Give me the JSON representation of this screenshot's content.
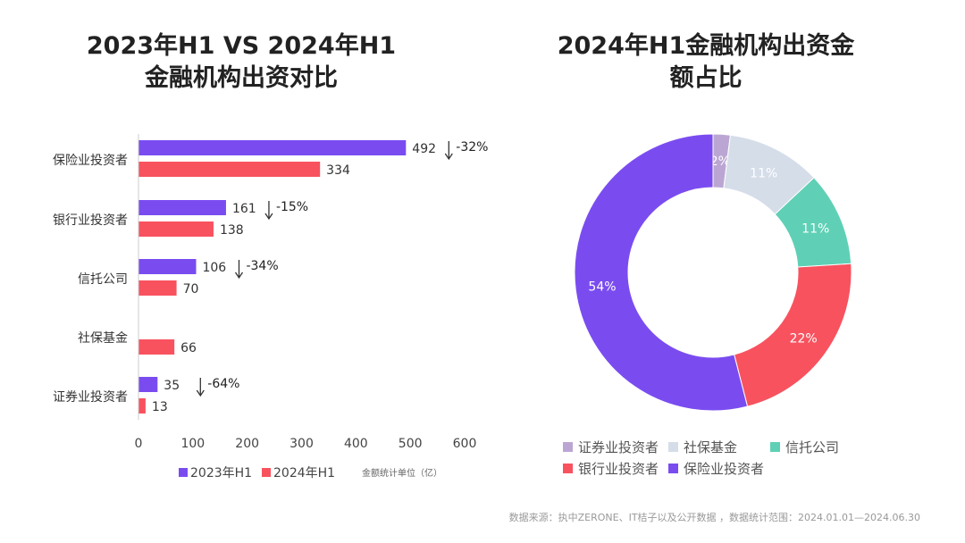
{
  "chart_data": [
    {
      "type": "bar",
      "orientation": "horizontal",
      "title": "2023年H1 VS 2024年H1\n金融机构出资对比",
      "title_lines": [
        "2023年H1 VS 2024年H1",
        "金融机构出资对比"
      ],
      "categories": [
        "保险业投资者",
        "银行业投资者",
        "信托公司",
        "社保基金",
        "证券业投资者"
      ],
      "series": [
        {
          "name": "2023年H1",
          "color": "#7a4cf0",
          "values": [
            492,
            161,
            106,
            null,
            35
          ]
        },
        {
          "name": "2024年H1",
          "color": "#f8525f",
          "values": [
            334,
            138,
            70,
            66,
            13
          ]
        }
      ],
      "changes": [
        "-32%",
        "-15%",
        "-34%",
        "",
        "-64%"
      ],
      "xlim": [
        0,
        600
      ],
      "xticks": [
        "0",
        "100",
        "200",
        "300",
        "400",
        "500",
        "600"
      ],
      "unit_note": "金额统计单位（亿）",
      "legend": "bottom",
      "grid": false
    },
    {
      "type": "pie",
      "donut": true,
      "title_lines": [
        "2024年H1金融机构出资金",
        "额占比"
      ],
      "slices": [
        {
          "label": "证券业投资者",
          "value": 2,
          "text": "2%",
          "color": "#bba6d3"
        },
        {
          "label": "社保基金",
          "value": 11,
          "text": "11%",
          "color": "#d5dde9"
        },
        {
          "label": "信托公司",
          "value": 11,
          "text": "11%",
          "color": "#5fd0b5"
        },
        {
          "label": "银行业投资者",
          "value": 22,
          "text": "22%",
          "color": "#f8525f"
        },
        {
          "label": "保险业投资者",
          "value": 54,
          "text": "54%",
          "color": "#7a4cf0"
        }
      ],
      "legend": "bottom"
    }
  ],
  "source": "数据来源：执中ZERONE、IT桔子以及公开数据 ，数据统计范围：2024.01.01—2024.06.30"
}
